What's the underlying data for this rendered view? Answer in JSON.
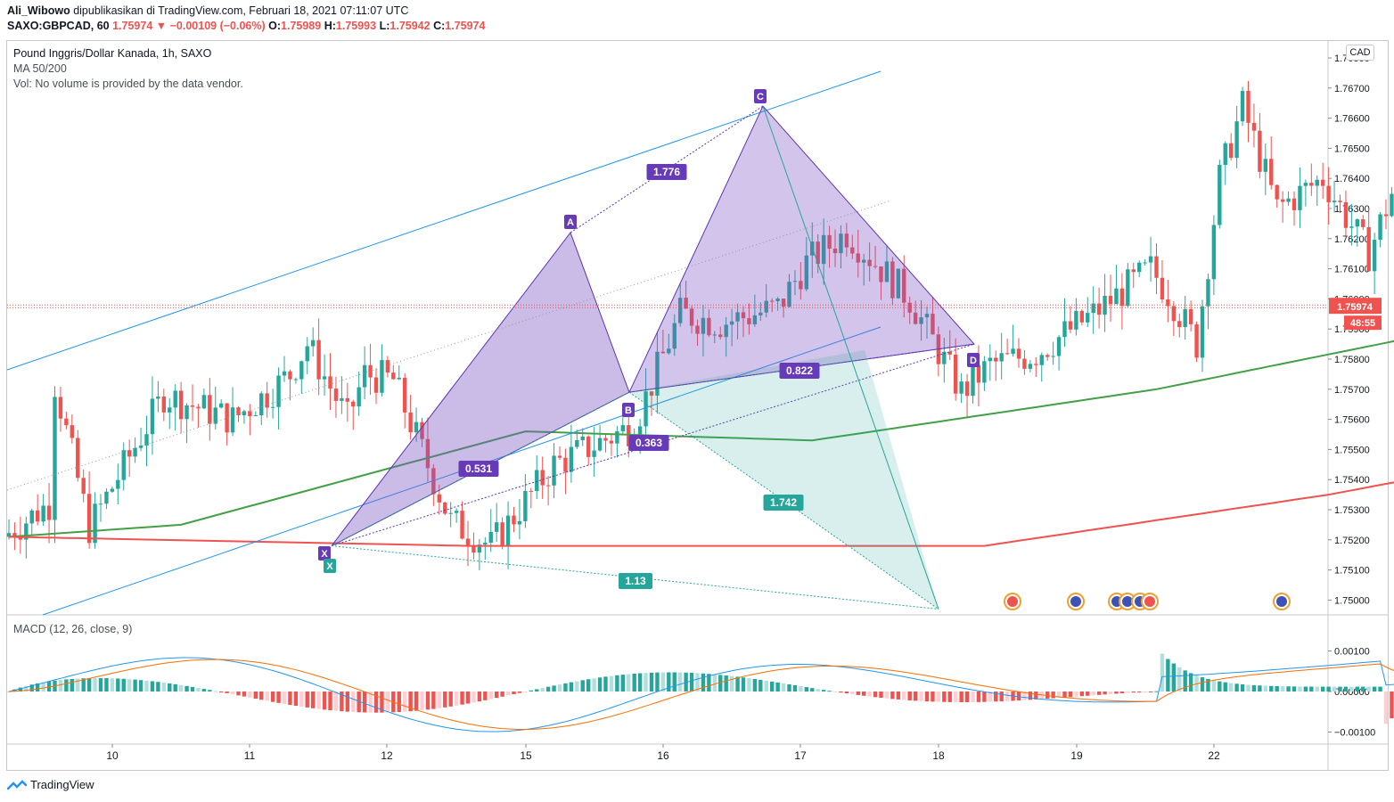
{
  "header": {
    "author": "Ali_Wibowo",
    "published_text": "dipublikasikan di TradingView.com, Februari 18, 2021 07:11:07 UTC",
    "symbol": "SAXO:GBPCAD, 60",
    "last": "1.75974",
    "change": "−0.00109 (−0.06%)",
    "o_label": "O:",
    "o": "1.75989",
    "h_label": "H:",
    "h": "1.75993",
    "l_label": "L:",
    "l": "1.75942",
    "c_label": "C:",
    "c": "1.75974"
  },
  "legend": {
    "title": "Pound Inggris/Dollar Kanada, 1h, SAXO",
    "ma": "MA 50/200",
    "vol": "Vol: No volume is provided by the data vendor.",
    "macd": "MACD (12, 26, close, 9)"
  },
  "currency_label": "CAD",
  "price_badge": "1.75974",
  "timer_badge": "48:55",
  "footer": {
    "brand": "TradingView"
  },
  "colors": {
    "up": "#26a69a",
    "down": "#ef5350",
    "ma50": "#43a047",
    "ma200": "#ef5350",
    "pattern_fill": "#7e57c2",
    "pattern_label": "#673ab7",
    "teal_fill": "#26a69a",
    "channel": "#2196f3",
    "macd": "#2196f3",
    "signal": "#ff6d00"
  },
  "chart_data": {
    "type": "candlestick",
    "title": "Pound Inggris/Dollar Kanada, 1h, SAXO",
    "price_axis": {
      "ylim": [
        1.7495,
        1.7688
      ],
      "ticks": [
        "1.76800",
        "1.76700",
        "1.76600",
        "1.76500",
        "1.76400",
        "1.76300",
        "1.76200",
        "1.76100",
        "1.76000",
        "1.75900",
        "1.75800",
        "1.75700",
        "1.75600",
        "1.75500",
        "1.75400",
        "1.75300",
        "1.75200",
        "1.75100",
        "1.75000"
      ]
    },
    "macd_axis": {
      "ylim": [
        -0.0012,
        0.0016
      ],
      "ticks": [
        "0.00100",
        "0.00000",
        "−0.00100"
      ]
    },
    "x_ticks": [
      "10",
      "11",
      "12",
      "15",
      "16",
      "17",
      "18",
      "19",
      "22"
    ],
    "harmonic_points": [
      {
        "label": "X",
        "price": 1.7518
      },
      {
        "label": "A",
        "price": 1.7622
      },
      {
        "label": "B",
        "price": 1.7569
      },
      {
        "label": "C",
        "price": 1.7664
      },
      {
        "label": "D",
        "price": 1.7585
      }
    ],
    "ratios": [
      {
        "label": "1.776"
      },
      {
        "label": "0.531"
      },
      {
        "label": "0.822"
      },
      {
        "label": "0.363"
      },
      {
        "label": "1.742"
      },
      {
        "label": "1.13"
      }
    ],
    "ma50_anchors": [
      [
        0,
        1.7521
      ],
      [
        30,
        1.7525
      ],
      [
        90,
        1.7556
      ],
      [
        140,
        1.7553
      ],
      [
        200,
        1.757
      ],
      [
        270,
        1.7597
      ],
      [
        330,
        1.7615
      ],
      [
        390,
        1.7618
      ]
    ],
    "ma200_anchors": [
      [
        0,
        1.7521
      ],
      [
        80,
        1.7518
      ],
      [
        170,
        1.7518
      ],
      [
        230,
        1.7535
      ],
      [
        300,
        1.756
      ],
      [
        345,
        1.7565
      ],
      [
        390,
        1.7571
      ]
    ]
  }
}
